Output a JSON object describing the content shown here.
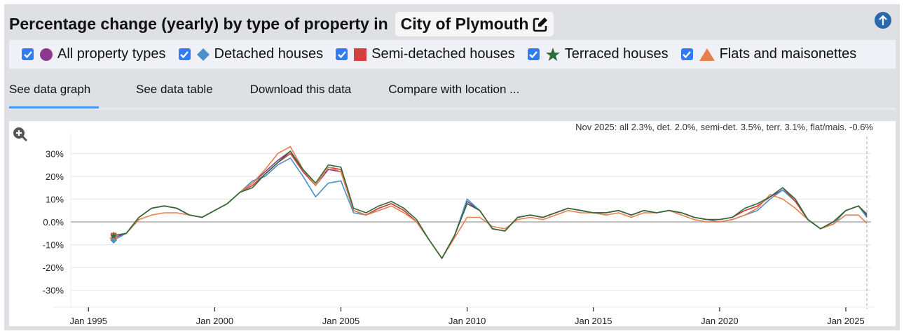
{
  "header": {
    "title": "Percentage change (yearly) by type of property in",
    "location": "City of Plymouth",
    "edit_icon": "edit-icon",
    "scroll_top_icon": "arrow-up-circle-icon"
  },
  "legend": [
    {
      "label": "All property types",
      "marker": "circle",
      "color": "#8b3a8b",
      "checked": true
    },
    {
      "label": "Detached houses",
      "marker": "diamond",
      "color": "#4a8fc8",
      "checked": true
    },
    {
      "label": "Semi-detached houses",
      "marker": "square",
      "color": "#d44040",
      "checked": true
    },
    {
      "label": "Terraced houses",
      "marker": "star",
      "color": "#2e6b3a",
      "checked": true
    },
    {
      "label": "Flats and maisonettes",
      "marker": "triangle",
      "color": "#e8804a",
      "checked": true
    }
  ],
  "tabs": [
    {
      "label": "See data graph",
      "active": true
    },
    {
      "label": "See data table"
    },
    {
      "label": "Download this data"
    },
    {
      "label": "Compare with location ..."
    }
  ],
  "chart_data": {
    "type": "line",
    "annotation": "Nov 2025: all 2.3%, det. 2.0%, semi-det. 3.5%, terr. 3.1%, flat/mais. -0.6%",
    "zoom_icon": "zoom-in-icon",
    "ylim": [
      -35,
      35
    ],
    "y_ticks": [
      "30%",
      "20%",
      "10%",
      "0.0%",
      "-10%",
      "-20%",
      "-30%"
    ],
    "y_tick_values": [
      30,
      20,
      10,
      0,
      -10,
      -20,
      -30
    ],
    "x_ticks": [
      "Jan 1995",
      "Jan 2000",
      "Jan 2005",
      "Jan 2010",
      "Jan 2015",
      "Jan 2020",
      "Jan 2025"
    ],
    "x_tick_years": [
      1995,
      2000,
      2005,
      2010,
      2015,
      2020,
      2025
    ],
    "xlim": [
      1994.3,
      2026.0
    ],
    "grid": true,
    "x_start": "Jan 1996",
    "x_step_months": 6,
    "x_end": "Nov 2025",
    "series": [
      {
        "name": "All property types",
        "color": "#8b3a8b",
        "values": [
          -7,
          -5,
          2,
          6,
          7,
          6,
          3,
          2,
          5,
          8,
          13,
          17,
          22,
          27,
          31,
          22,
          16,
          23,
          22,
          5,
          3,
          6,
          8,
          5,
          0,
          -8,
          -16,
          -6,
          9,
          5,
          -3,
          -4,
          2,
          3,
          2,
          4,
          6,
          5,
          4,
          4,
          5,
          3,
          5,
          4,
          5,
          4,
          2,
          1,
          1,
          2,
          5,
          7,
          11,
          14,
          9,
          1,
          -3,
          0,
          5,
          7,
          2.3
        ]
      },
      {
        "name": "Detached houses",
        "color": "#4a8fc8",
        "values": [
          -8,
          -5,
          2,
          6,
          7,
          6,
          3,
          2,
          5,
          8,
          13,
          18,
          20,
          25,
          28,
          20,
          11,
          17,
          18,
          4,
          3,
          6,
          8,
          5,
          0,
          -8,
          -16,
          -6,
          10,
          5,
          -3,
          -4,
          2,
          3,
          2,
          4,
          6,
          5,
          4,
          4,
          5,
          3,
          5,
          4,
          5,
          4,
          2,
          1,
          0,
          1,
          3,
          5,
          10,
          14,
          9,
          1,
          -3,
          -1,
          5,
          7,
          2.0
        ]
      },
      {
        "name": "Semi-detached houses",
        "color": "#d44040",
        "values": [
          -6,
          -5,
          2,
          6,
          7,
          6,
          3,
          2,
          5,
          8,
          13,
          16,
          21,
          26,
          30,
          22,
          16,
          24,
          23,
          5,
          3,
          6,
          8,
          5,
          0,
          -8,
          -16,
          -6,
          8,
          5,
          -3,
          -4,
          2,
          3,
          2,
          4,
          6,
          5,
          4,
          4,
          5,
          3,
          5,
          4,
          5,
          4,
          2,
          1,
          1,
          2,
          5,
          7,
          11,
          15,
          9,
          1,
          -3,
          0,
          5,
          7,
          3.5
        ]
      },
      {
        "name": "Flats and maisonettes",
        "color": "#e8804a",
        "values": [
          -6,
          -5,
          1,
          3,
          4,
          4,
          3,
          2,
          5,
          8,
          13,
          17,
          23,
          30,
          33,
          23,
          16,
          24,
          22,
          5,
          3,
          5,
          7,
          4,
          0,
          -8,
          -16,
          -7,
          2,
          2,
          -2,
          -3,
          1,
          2,
          1,
          3,
          5,
          4,
          4,
          3,
          4,
          2,
          4,
          4,
          5,
          3,
          1,
          0,
          0,
          1,
          3,
          6,
          12,
          10,
          6,
          1,
          -3,
          -1,
          3,
          3,
          -0.6
        ]
      },
      {
        "name": "Terraced houses",
        "color": "#2e6b3a",
        "values": [
          -6,
          -5,
          2,
          6,
          7,
          6,
          3,
          2,
          5,
          8,
          13,
          15,
          21,
          26,
          31,
          23,
          17,
          25,
          24,
          6,
          4,
          7,
          9,
          6,
          1,
          -8,
          -16,
          -6,
          8,
          5,
          -3,
          -4,
          2,
          3,
          2,
          4,
          6,
          5,
          4,
          4,
          5,
          3,
          5,
          4,
          5,
          4,
          2,
          1,
          1,
          2,
          6,
          8,
          11,
          15,
          10,
          1,
          -3,
          0,
          5,
          7,
          3.1
        ]
      }
    ]
  }
}
